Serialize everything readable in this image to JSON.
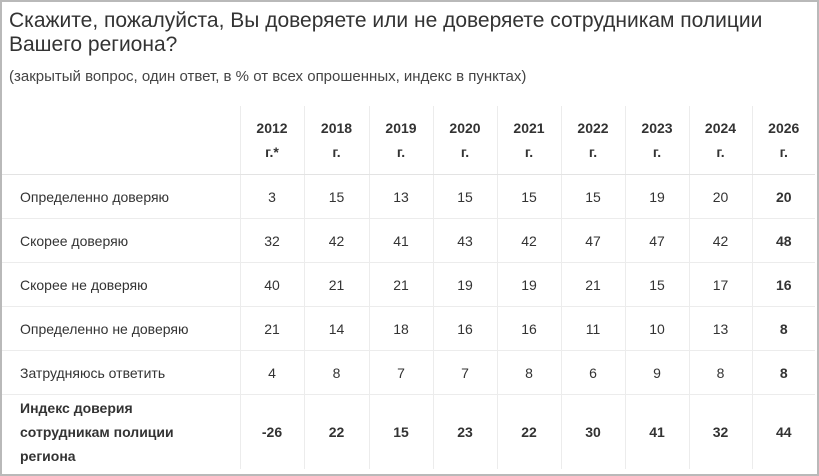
{
  "title": "Скажите, пожалуйста, Вы доверяете или не доверяете сотрудникам полиции Вашего региона?",
  "subtitle": "(закрытый вопрос, один ответ, в % от всех опрошенных, индекс в пунктах)",
  "table": {
    "columns": [
      {
        "year": "2012",
        "unit": "г.*"
      },
      {
        "year": "2018",
        "unit": "г."
      },
      {
        "year": "2019",
        "unit": "г."
      },
      {
        "year": "2020",
        "unit": "г."
      },
      {
        "year": "2021",
        "unit": "г."
      },
      {
        "year": "2022",
        "unit": "г."
      },
      {
        "year": "2023",
        "unit": "г."
      },
      {
        "year": "2024",
        "unit": "г."
      },
      {
        "year": "2026",
        "unit": "г."
      }
    ],
    "rows": [
      {
        "label": "Определенно доверяю",
        "values": [
          "3",
          "15",
          "13",
          "15",
          "15",
          "15",
          "19",
          "20",
          "20"
        ]
      },
      {
        "label": "Скорее доверяю",
        "values": [
          "32",
          "42",
          "41",
          "43",
          "42",
          "47",
          "47",
          "42",
          "48"
        ]
      },
      {
        "label": "Скорее не доверяю",
        "values": [
          "40",
          "21",
          "21",
          "19",
          "19",
          "21",
          "15",
          "17",
          "16"
        ]
      },
      {
        "label": "Определенно не доверяю",
        "values": [
          "21",
          "14",
          "18",
          "16",
          "16",
          "11",
          "10",
          "13",
          "8"
        ]
      },
      {
        "label": "Затрудняюсь ответить",
        "values": [
          "4",
          "8",
          "7",
          "7",
          "8",
          "6",
          "9",
          "8",
          "8"
        ]
      }
    ],
    "index_row": {
      "label_lines": [
        "Индекс доверия",
        "сотрудникам полиции",
        "региона"
      ],
      "values": [
        "-26",
        "22",
        "15",
        "23",
        "22",
        "30",
        "41",
        "32",
        "44"
      ]
    }
  }
}
